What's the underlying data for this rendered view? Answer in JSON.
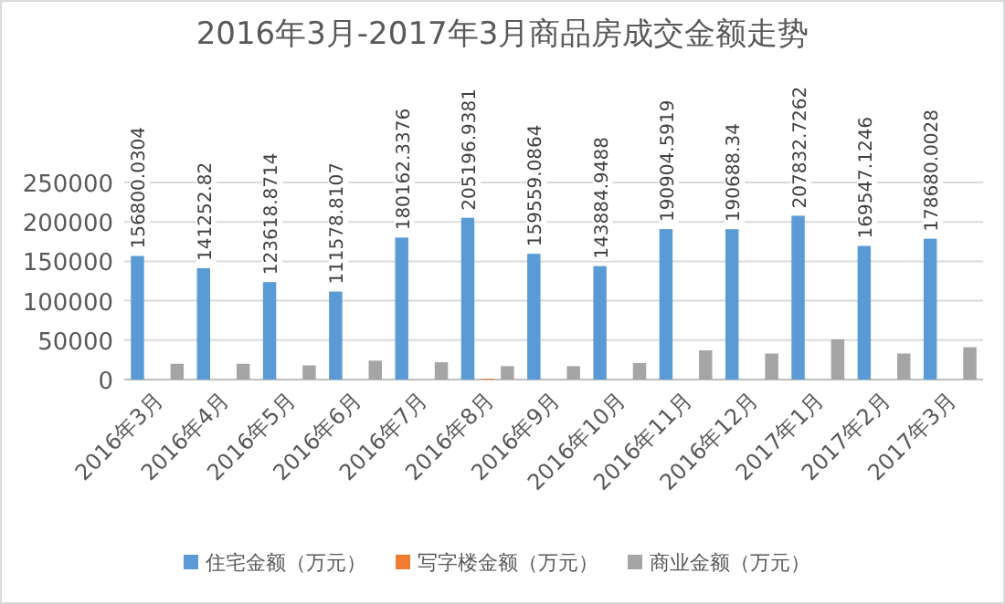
{
  "chart_data": {
    "type": "bar",
    "title": "2016年3月-2017年3月商品房成交金额走势",
    "categories": [
      "2016年3月",
      "2016年4月",
      "2016年5月",
      "2016年6月",
      "2016年7月",
      "2016年8月",
      "2016年9月",
      "2016年10月",
      "2016年11月",
      "2016年12月",
      "2017年1月",
      "2017年2月",
      "2017年3月"
    ],
    "series": [
      {
        "name": "住宅金额（万元）",
        "color": "#5b9bd5",
        "values": [
          156800.0304,
          141252.82,
          123618.8714,
          111578.8107,
          180162.3376,
          205196.9381,
          159559.0864,
          143884.9488,
          190904.5919,
          190688.34,
          207832.7262,
          169547.1246,
          178680.0028
        ],
        "value_labels": [
          "156800.0304",
          "141252.82",
          "123618.8714",
          "111578.8107",
          "180162.3376",
          "205196.9381",
          "159559.0864",
          "143884.9488",
          "190904.5919",
          "190688.34",
          "207832.7262",
          "169547.1246",
          "178680.0028"
        ]
      },
      {
        "name": "写字楼金额（万元）",
        "color": "#ed7d31",
        "values": [
          0,
          0,
          0,
          0,
          0,
          1000,
          0,
          0,
          0,
          0,
          0,
          0,
          0
        ]
      },
      {
        "name": "商业金额（万元）",
        "color": "#a5a5a5",
        "values": [
          20000,
          20000,
          18000,
          24000,
          22000,
          17000,
          17000,
          21000,
          37000,
          33000,
          51000,
          33000,
          41000
        ]
      }
    ],
    "ylim": [
      0,
      250000
    ],
    "yticks": [
      0,
      50000,
      100000,
      150000,
      200000,
      250000
    ],
    "grid": "y",
    "legend": "bottom"
  }
}
